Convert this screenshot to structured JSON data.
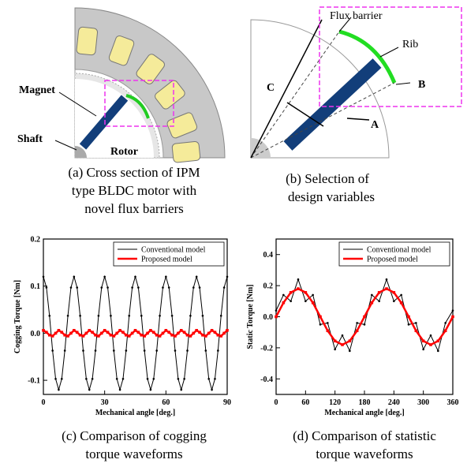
{
  "figure_a": {
    "labels": {
      "magnet": "Magnet",
      "shaft": "Shaft",
      "rotor": "Rotor"
    },
    "caption": [
      "(a) Cross section of IPM",
      "type BLDC motor with",
      "novel flux barriers"
    ]
  },
  "figure_b": {
    "labels": {
      "flux_barrier": "Flux barrier",
      "rib": "Rib",
      "a": "A",
      "b": "B",
      "c": "C"
    },
    "caption": [
      "(b) Selection of",
      "design variables"
    ]
  },
  "chart_data": [
    {
      "type": "line",
      "ylabel": "Cogging Torque [Nm]",
      "xlabel": "Mechanical angle [deg.]",
      "caption": [
        "(c) Comparison of cogging",
        "torque waveforms"
      ],
      "xlim": [
        0,
        90
      ],
      "xticks": [
        0,
        30,
        60,
        90
      ],
      "ylim": [
        -0.13,
        0.2
      ],
      "yticks": [
        -0.1,
        {
          "value": 0,
          "label": "0.0"
        },
        0.1,
        0.2
      ],
      "legend": "upper right",
      "x": [
        0,
        1.5,
        3,
        4.5,
        6,
        7.5,
        9,
        10.5,
        12,
        13.5,
        15,
        16.5,
        18,
        19.5,
        21,
        22.5,
        24,
        25.5,
        27,
        28.5,
        30,
        31.5,
        33,
        34.5,
        36,
        37.5,
        39,
        40.5,
        42,
        43.5,
        45,
        46.5,
        48,
        49.5,
        51,
        52.5,
        54,
        55.5,
        57,
        58.5,
        60,
        61.5,
        63,
        64.5,
        66,
        67.5,
        69,
        70.5,
        72,
        73.5,
        75,
        76.5,
        78,
        79.5,
        81,
        82.5,
        84,
        85.5,
        87,
        88.5,
        90
      ],
      "series": [
        {
          "name": "Conventional model",
          "color": "#000000",
          "values": [
            0.12,
            0.097,
            0.037,
            -0.037,
            -0.097,
            -0.12,
            -0.097,
            -0.037,
            0.037,
            0.097,
            0.12,
            0.097,
            0.037,
            -0.037,
            -0.097,
            -0.12,
            -0.097,
            -0.037,
            0.037,
            0.097,
            0.12,
            0.097,
            0.037,
            -0.037,
            -0.097,
            -0.12,
            -0.097,
            -0.037,
            0.037,
            0.097,
            0.12,
            0.097,
            0.037,
            -0.037,
            -0.097,
            -0.12,
            -0.097,
            -0.037,
            0.037,
            0.097,
            0.12,
            0.097,
            0.037,
            -0.037,
            -0.097,
            -0.12,
            -0.097,
            -0.037,
            0.037,
            0.097,
            0.12,
            0.097,
            0.037,
            -0.037,
            -0.097,
            -0.12,
            -0.097,
            -0.037,
            0.037,
            0.097,
            0.12
          ]
        },
        {
          "name": "Proposed model",
          "color": "#ff0000",
          "values": [
            0.006,
            0.002,
            -0.004,
            -0.006,
            0,
            0.006,
            0.002,
            -0.004,
            -0.006,
            0,
            0.006,
            0.002,
            -0.004,
            -0.006,
            0,
            0.006,
            0.002,
            -0.004,
            -0.006,
            0,
            0.006,
            0.002,
            -0.004,
            -0.006,
            0,
            0.006,
            0.002,
            -0.004,
            -0.006,
            0,
            0.006,
            0.002,
            -0.004,
            -0.006,
            0,
            0.006,
            0.002,
            -0.004,
            -0.006,
            0,
            0.006,
            0.002,
            -0.004,
            -0.006,
            0,
            0.006,
            0.002,
            -0.004,
            -0.006,
            0,
            0.006,
            0.002,
            -0.004,
            -0.006,
            0,
            0.006,
            0.002,
            -0.004,
            -0.006,
            0,
            0.006
          ]
        }
      ]
    },
    {
      "type": "line",
      "ylabel": "Static Torque [Nm]",
      "xlabel": "Mechanical angle [deg.]",
      "caption": [
        "(d) Comparison of statistic",
        "torque waveforms"
      ],
      "xlim": [
        0,
        360
      ],
      "xticks": [
        0,
        60,
        120,
        180,
        240,
        300,
        360
      ],
      "ylim": [
        -0.5,
        0.5
      ],
      "yticks": [
        -0.4,
        -0.2,
        {
          "value": 0,
          "label": "0.0"
        },
        0.2,
        0.4
      ],
      "legend": "upper right",
      "x": [
        0,
        15,
        30,
        45,
        60,
        75,
        90,
        105,
        120,
        135,
        150,
        165,
        180,
        195,
        210,
        225,
        240,
        255,
        270,
        285,
        300,
        315,
        330,
        345,
        360
      ],
      "series": [
        {
          "name": "Conventional model",
          "color": "#000000",
          "values": [
            0.04,
            0.14,
            0.1,
            0.24,
            0.1,
            0.14,
            -0.05,
            -0.04,
            -0.21,
            -0.12,
            -0.22,
            -0.04,
            -0.05,
            0.14,
            0.1,
            0.24,
            0.1,
            0.14,
            -0.05,
            -0.04,
            -0.21,
            -0.12,
            -0.22,
            -0.04,
            0.04
          ]
        },
        {
          "name": "Proposed model",
          "color": "#ff0000",
          "values": [
            0,
            0.09,
            0.156,
            0.18,
            0.156,
            0.09,
            0,
            -0.09,
            -0.156,
            -0.18,
            -0.156,
            -0.09,
            0,
            0.09,
            0.156,
            0.18,
            0.156,
            0.09,
            0,
            -0.09,
            -0.156,
            -0.18,
            -0.156,
            -0.09,
            0
          ]
        }
      ]
    }
  ]
}
